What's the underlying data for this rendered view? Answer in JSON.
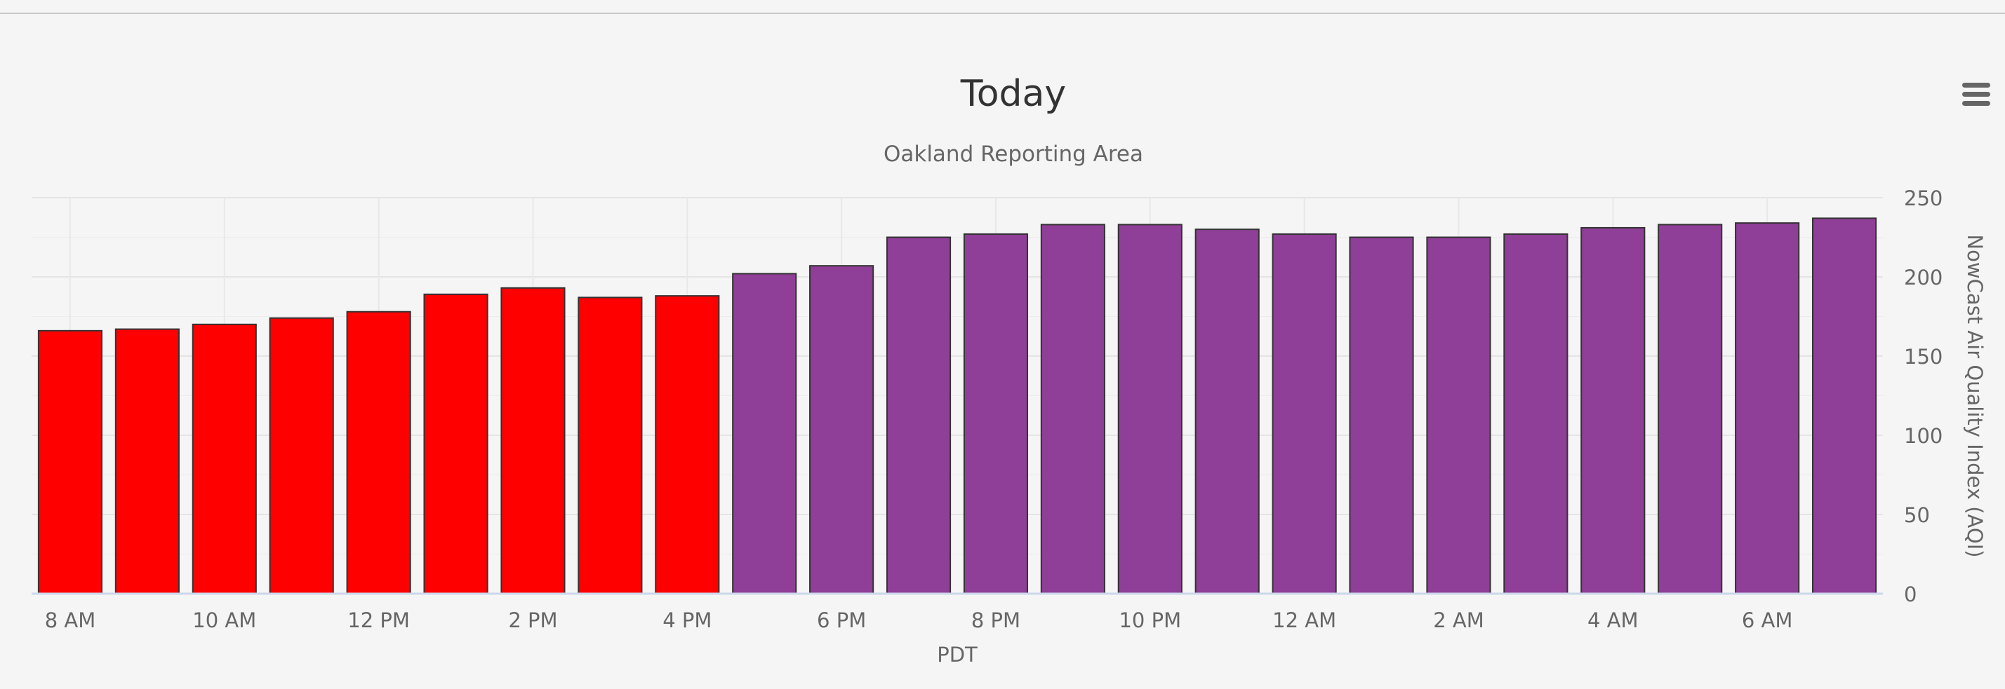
{
  "chart_data": {
    "type": "bar",
    "title": "Today",
    "subtitle": "Oakland Reporting Area",
    "xlabel": "PDT",
    "ylabel": "NowCast Air Quality Index (AQI)",
    "ylim": [
      0,
      250
    ],
    "yticks": [
      0,
      50,
      100,
      150,
      200,
      250
    ],
    "x_tick_labels": [
      "8 AM",
      "10 AM",
      "12 PM",
      "2 PM",
      "4 PM",
      "6 PM",
      "8 PM",
      "10 PM",
      "12 AM",
      "2 AM",
      "4 AM",
      "6 AM"
    ],
    "categories": [
      "8 AM",
      "9 AM",
      "10 AM",
      "11 AM",
      "12 PM",
      "1 PM",
      "2 PM",
      "3 PM",
      "4 PM",
      "5 PM",
      "6 PM",
      "7 PM",
      "8 PM",
      "9 PM",
      "10 PM",
      "11 PM",
      "12 AM",
      "1 AM",
      "2 AM",
      "3 AM",
      "4 AM",
      "5 AM",
      "6 AM",
      "7 AM"
    ],
    "values": [
      166,
      167,
      170,
      174,
      178,
      189,
      193,
      187,
      188,
      202,
      207,
      225,
      227,
      233,
      233,
      230,
      227,
      225,
      225,
      227,
      231,
      233,
      234,
      237
    ],
    "bar_colors": [
      "#ff0000",
      "#ff0000",
      "#ff0000",
      "#ff0000",
      "#ff0000",
      "#ff0000",
      "#ff0000",
      "#ff0000",
      "#ff0000",
      "#8f3f97",
      "#8f3f97",
      "#8f3f97",
      "#8f3f97",
      "#8f3f97",
      "#8f3f97",
      "#8f3f97",
      "#8f3f97",
      "#8f3f97",
      "#8f3f97",
      "#8f3f97",
      "#8f3f97",
      "#8f3f97",
      "#8f3f97",
      "#8f3f97"
    ],
    "yaxis_side": "right",
    "grid": true
  },
  "colors": {
    "unhealthy": "#ff0000",
    "very_unhealthy": "#8f3f97"
  },
  "menu": {
    "icon": "hamburger-menu-icon"
  }
}
